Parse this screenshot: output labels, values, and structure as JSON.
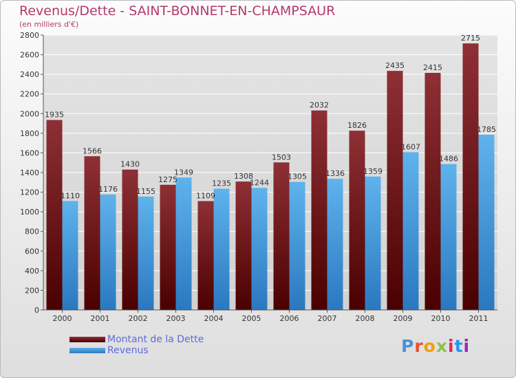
{
  "title": "Revenus/Dette - SAINT-BONNET-EN-CHAMPSAUR",
  "subtitle": "(en milliers d'€)",
  "logo": {
    "text": "Proxiti",
    "letter_colors": [
      "#4a90d9",
      "#e8532b",
      "#f39c12",
      "#8bc34a",
      "#e91e63",
      "#2196f3",
      "#9c27b0"
    ]
  },
  "colors": {
    "dette": "#8b2a2f",
    "dette_dark": "#4a0000",
    "revenus": "#5aaee8",
    "revenus_dark": "#2a78c0",
    "grid": "#ffffff",
    "axis": "#555555",
    "title": "#b5386a",
    "legend_text": "#5f6bdc"
  },
  "chart_data": {
    "type": "bar",
    "title": "Revenus/Dette - SAINT-BONNET-EN-CHAMPSAUR",
    "subtitle": "(en milliers d'€)",
    "categories": [
      "2000",
      "2001",
      "2002",
      "2003",
      "2004",
      "2005",
      "2006",
      "2007",
      "2008",
      "2009",
      "2010",
      "2011"
    ],
    "series": [
      {
        "name": "Montant de la Dette",
        "values": [
          1935,
          1566,
          1430,
          1275,
          1109,
          1308,
          1503,
          2032,
          1826,
          2435,
          2415,
          2715
        ]
      },
      {
        "name": "Revenus",
        "values": [
          1110,
          1176,
          1155,
          1349,
          1235,
          1244,
          1305,
          1336,
          1359,
          1607,
          1486,
          1785
        ]
      }
    ],
    "ylim": [
      0,
      2800
    ],
    "yticks": [
      0,
      200,
      400,
      600,
      800,
      1000,
      1200,
      1400,
      1600,
      1800,
      2000,
      2200,
      2400,
      2600,
      2800
    ],
    "grid": true,
    "legend_position": "bottom-left"
  }
}
